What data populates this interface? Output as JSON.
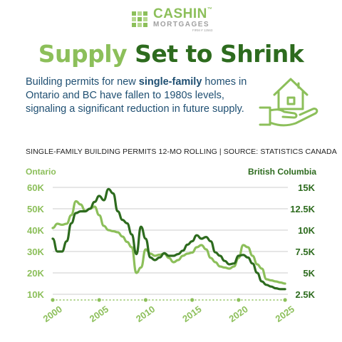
{
  "brand": {
    "name": "CASHIN",
    "trademark": "™",
    "sub": "MORTGAGES",
    "firm": "FIRM # 12563"
  },
  "headline": {
    "word1": "Supply",
    "rest": "Set to Shrink"
  },
  "intro": {
    "part1": "Building permits for new ",
    "bold": "single-family",
    "part2": " homes in Ontario and BC have fallen to 1980s levels, signaling a significant reduction in future supply."
  },
  "source_line": "SINGLE-FAMILY BUILDING PERMITS 12-MO ROLLING | SOURCE: STATISTICS CANADA",
  "icons": {
    "illustration": "house-in-hand-icon"
  },
  "colors": {
    "ontario": "#8cbf5a",
    "bc": "#2d6b1e",
    "text_blue": "#1f4f72",
    "grid": "#cccccc"
  },
  "chart_data": {
    "type": "line",
    "title": "SINGLE-FAMILY BUILDING PERMITS 12-MO ROLLING",
    "xlim": [
      2000,
      2025.3
    ],
    "x_ticks": [
      2000,
      2005,
      2010,
      2015,
      2020,
      2025
    ],
    "x_tick_labels": [
      "2000",
      "2005",
      "2010",
      "2015",
      "2020",
      "2025"
    ],
    "left_axis": {
      "label": "Ontario",
      "ylim": [
        10000,
        60000
      ],
      "ticks": [
        10000,
        20000,
        30000,
        40000,
        50000,
        60000
      ],
      "tick_labels": [
        "10K",
        "20K",
        "30K",
        "40K",
        "50K",
        "60K"
      ]
    },
    "right_axis": {
      "label": "British Columbia",
      "ylim": [
        2500,
        15000
      ],
      "ticks": [
        2500,
        5000,
        7500,
        10000,
        12500,
        15000
      ],
      "tick_labels": [
        "2.5K",
        "5K",
        "7.5K",
        "10K",
        "12.5K",
        "15K"
      ]
    },
    "grid": true,
    "series": [
      {
        "name": "Ontario",
        "axis": "left",
        "color": "#8cbf5a",
        "x": [
          2000,
          2000.5,
          2001,
          2001.5,
          2002,
          2002.5,
          2003,
          2003.5,
          2004,
          2004.5,
          2005,
          2005.5,
          2006,
          2006.5,
          2007,
          2007.5,
          2008,
          2008.5,
          2009,
          2009.5,
          2010,
          2010.5,
          2011,
          2011.5,
          2012,
          2012.5,
          2013,
          2013.5,
          2014,
          2014.5,
          2015,
          2015.5,
          2016,
          2016.5,
          2017,
          2017.5,
          2018,
          2018.5,
          2019,
          2019.5,
          2020,
          2020.5,
          2021,
          2021.5,
          2022,
          2022.5,
          2023,
          2023.5,
          2024,
          2024.5,
          2025
        ],
        "values": [
          41000,
          43000,
          42500,
          43000,
          47000,
          53500,
          52000,
          49000,
          50000,
          51000,
          47000,
          42000,
          40000,
          39500,
          39000,
          37000,
          34500,
          32000,
          20000,
          22500,
          31000,
          29000,
          28000,
          28500,
          29000,
          27000,
          25000,
          26000,
          28000,
          29000,
          29500,
          32000,
          33000,
          31000,
          27000,
          25000,
          23000,
          22500,
          22000,
          23000,
          27000,
          33000,
          32000,
          28000,
          24000,
          22000,
          17000,
          16500,
          16000,
          15500,
          15000
        ]
      },
      {
        "name": "British Columbia",
        "axis": "right",
        "color": "#2d6b1e",
        "x": [
          2000,
          2000.5,
          2001,
          2001.5,
          2002,
          2002.5,
          2003,
          2003.5,
          2004,
          2004.5,
          2005,
          2005.5,
          2006,
          2006.5,
          2007,
          2007.5,
          2008,
          2008.5,
          2009,
          2009.5,
          2010,
          2010.5,
          2011,
          2011.5,
          2012,
          2012.5,
          2013,
          2013.5,
          2014,
          2014.5,
          2015,
          2015.5,
          2016,
          2016.5,
          2017,
          2017.5,
          2018,
          2018.5,
          2019,
          2019.5,
          2020,
          2020.5,
          2021,
          2021.5,
          2022,
          2022.5,
          2023,
          2023.5,
          2024,
          2024.5,
          2025
        ],
        "values": [
          9000,
          7500,
          7500,
          8700,
          10800,
          12000,
          12200,
          12200,
          12500,
          13300,
          14000,
          13500,
          14800,
          14300,
          12200,
          11200,
          10800,
          9500,
          7200,
          10400,
          9000,
          6800,
          6500,
          6800,
          7300,
          7000,
          7000,
          7200,
          7600,
          8300,
          8700,
          9400,
          9000,
          9200,
          8700,
          7400,
          7000,
          6400,
          6000,
          6100,
          7000,
          7100,
          6800,
          6100,
          5000,
          4000,
          3600,
          3400,
          3200,
          3100,
          3100
        ]
      }
    ]
  }
}
